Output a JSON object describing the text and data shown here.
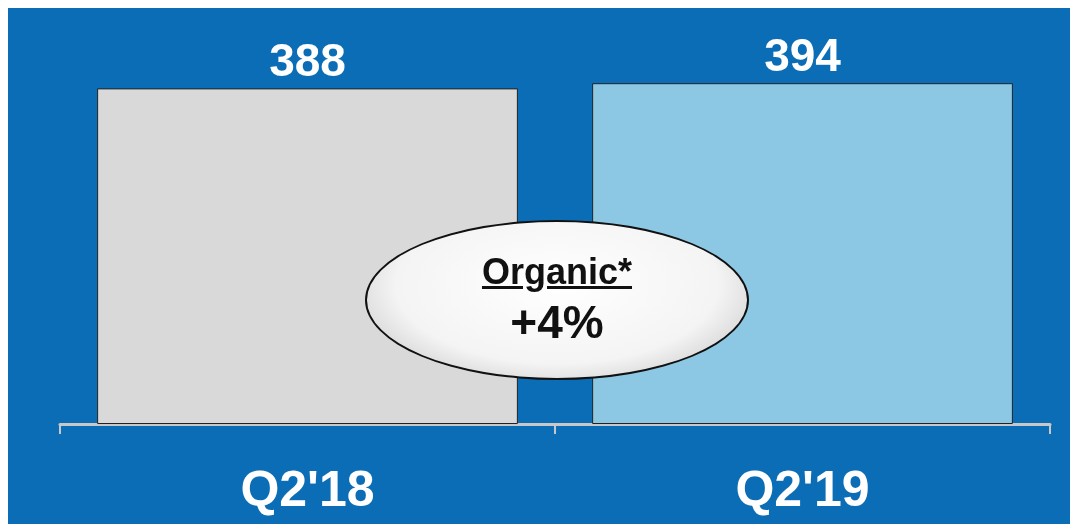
{
  "chart_data": {
    "type": "bar",
    "categories": [
      "Q2'18",
      "Q2'19"
    ],
    "values": [
      388,
      394
    ],
    "colors": [
      "#d9d9d9",
      "#8cc8e4"
    ],
    "data_labels": true,
    "annotations": [
      "Organic*",
      "+4%"
    ]
  }
}
